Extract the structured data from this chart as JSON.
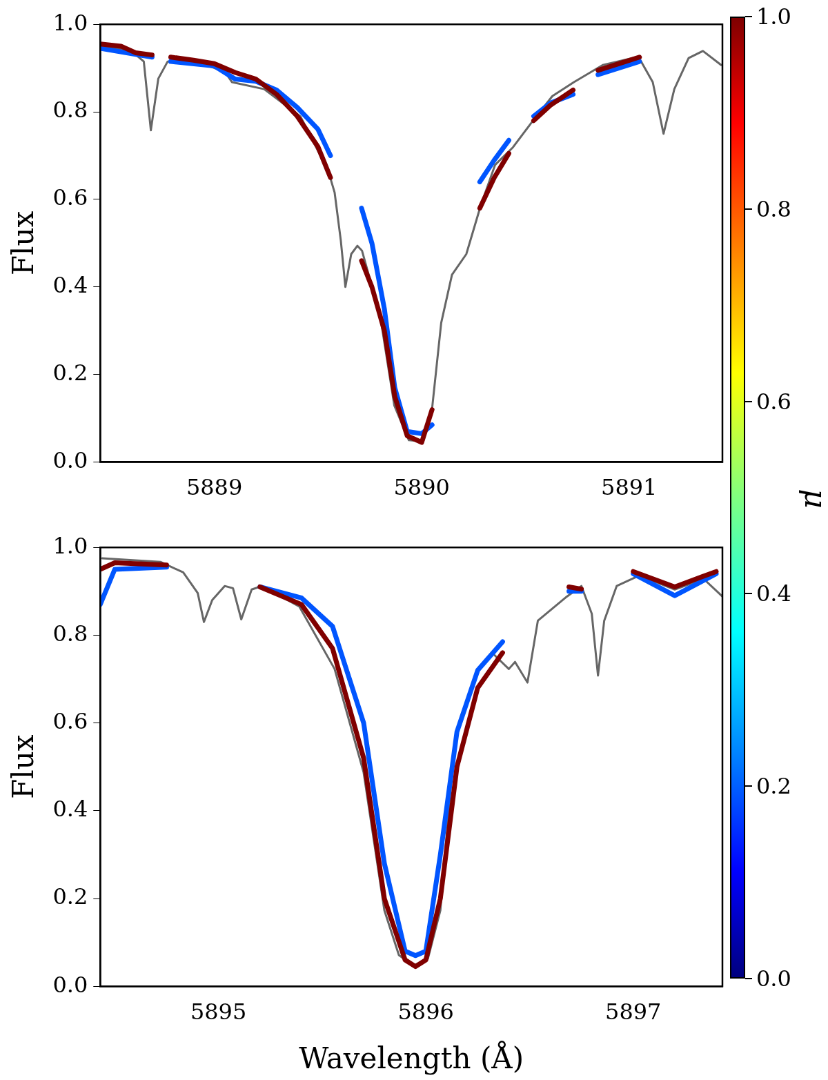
{
  "chart_data": [
    {
      "type": "line",
      "ylabel": "Flux",
      "xlim": [
        5888.45,
        5891.45
      ],
      "ylim": [
        0,
        1
      ],
      "xticks": [
        5889,
        5890,
        5891
      ],
      "yticks": [
        {
          "value": 0,
          "label": "0.0"
        },
        {
          "value": 0.2,
          "label": "0.2"
        },
        {
          "value": 0.4,
          "label": "0.4"
        },
        {
          "value": 0.6,
          "label": "0.6"
        },
        {
          "value": 0.8,
          "label": "0.8"
        },
        {
          "value": 1,
          "label": "1.0"
        }
      ],
      "grid": false,
      "legend": false,
      "clabel": "μ",
      "clim": [
        0,
        1
      ],
      "cticks": [
        {
          "value": 0,
          "label": "0.0"
        },
        {
          "value": 0.2,
          "label": "0.2"
        },
        {
          "value": 0.4,
          "label": "0.4"
        },
        {
          "value": 0.6,
          "label": "0.6"
        },
        {
          "value": 0.8,
          "label": "0.8"
        },
        {
          "value": 1,
          "label": "1.0"
        }
      ],
      "series": [
        {
          "color": "#666666",
          "x": [
            5888.452,
            5888.6,
            5888.66,
            5888.694,
            5888.73,
            5888.775,
            5888.896,
            5889.05,
            5889.085,
            5889.24,
            5889.416,
            5889.55,
            5889.58,
            5889.61,
            5889.632,
            5889.66,
            5889.69,
            5889.712,
            5889.8,
            5889.868,
            5889.938,
            5890.007,
            5890.048,
            5890.094,
            5890.146,
            5890.215,
            5890.284,
            5890.354,
            5890.44,
            5890.527,
            5890.63,
            5890.734,
            5890.873,
            5891.045,
            5891.114,
            5891.166,
            5891.218,
            5891.287,
            5891.356,
            5891.444
          ],
          "values": [
            0.95,
            0.939,
            0.915,
            0.758,
            0.876,
            0.915,
            0.918,
            0.892,
            0.868,
            0.852,
            0.789,
            0.664,
            0.616,
            0.506,
            0.4,
            0.475,
            0.494,
            0.483,
            0.333,
            0.129,
            0.05,
            0.047,
            0.113,
            0.318,
            0.428,
            0.475,
            0.585,
            0.679,
            0.719,
            0.774,
            0.836,
            0.868,
            0.907,
            0.926,
            0.868,
            0.75,
            0.852,
            0.923,
            0.939,
            0.907
          ]
        },
        {
          "color": "#0055ff",
          "x": [
            5888.45,
            5888.7,
            5888.74,
            5888.79,
            5889.0,
            5889.1,
            5889.2,
            5889.3,
            5889.4,
            5889.5,
            5889.56,
            5889.63,
            5889.71,
            5889.76,
            5889.82,
            5889.87,
            5889.93,
            5890.0,
            5890.05,
            5890.17,
            5890.28,
            5890.35,
            5890.42,
            5890.48,
            5890.54,
            5890.62,
            5890.73,
            5890.79,
            5890.85,
            5890.95,
            5891.05
          ],
          "values": [
            0.945,
            0.925,
            null,
            0.915,
            0.905,
            0.875,
            0.87,
            0.85,
            0.81,
            0.76,
            0.7,
            null,
            0.58,
            0.5,
            0.35,
            0.17,
            0.07,
            0.065,
            0.085,
            null,
            0.64,
            0.69,
            0.735,
            null,
            0.79,
            0.82,
            0.84,
            null,
            0.885,
            0.9,
            0.915
          ]
        },
        {
          "color": "#800000",
          "x": [
            5888.45,
            5888.55,
            5888.62,
            5888.7,
            5888.74,
            5888.79,
            5888.9,
            5889.0,
            5889.1,
            5889.2,
            5889.3,
            5889.4,
            5889.5,
            5889.56,
            5889.63,
            5889.71,
            5889.76,
            5889.82,
            5889.87,
            5889.93,
            5890.0,
            5890.05,
            5890.17,
            5890.28,
            5890.35,
            5890.42,
            5890.48,
            5890.54,
            5890.62,
            5890.73,
            5890.79,
            5890.85,
            5890.95,
            5891.05
          ],
          "values": [
            0.955,
            0.95,
            0.935,
            0.93,
            null,
            0.925,
            0.918,
            0.91,
            0.89,
            0.875,
            0.84,
            0.79,
            0.72,
            0.65,
            null,
            0.46,
            0.4,
            0.3,
            0.15,
            0.06,
            0.045,
            0.12,
            null,
            0.58,
            0.65,
            0.705,
            null,
            0.78,
            0.815,
            0.85,
            null,
            0.895,
            0.91,
            0.925
          ]
        }
      ]
    },
    {
      "type": "line",
      "xlabel": "Wavelength (Å)",
      "ylabel": "Flux",
      "xlim": [
        5894.43,
        5897.43
      ],
      "ylim": [
        0,
        1
      ],
      "xticks": [
        5895,
        5896,
        5897
      ],
      "yticks": [
        {
          "value": 0,
          "label": "0.0"
        },
        {
          "value": 0.2,
          "label": "0.2"
        },
        {
          "value": 0.4,
          "label": "0.4"
        },
        {
          "value": 0.6,
          "label": "0.6"
        },
        {
          "value": 0.8,
          "label": "0.8"
        },
        {
          "value": 1,
          "label": "1.0"
        }
      ],
      "grid": false,
      "legend": false,
      "series": [
        {
          "color": "#666666",
          "x": [
            5894.44,
            5894.72,
            5894.83,
            5894.9,
            5894.93,
            5894.97,
            5895.03,
            5895.07,
            5895.11,
            5895.16,
            5895.21,
            5895.39,
            5895.56,
            5895.7,
            5895.8,
            5895.87,
            5895.94,
            5896.01,
            5896.07,
            5896.12,
            5896.19,
            5896.33,
            5896.4,
            5896.43,
            5896.49,
            5896.54,
            5896.68,
            5896.75,
            5896.8,
            5896.83,
            5896.86,
            5896.92,
            5897.03,
            5897.2,
            5897.34,
            5897.43
          ],
          "values": [
            0.975,
            0.967,
            0.943,
            0.896,
            0.83,
            0.88,
            0.912,
            0.907,
            0.836,
            0.904,
            0.912,
            0.865,
            0.723,
            0.487,
            0.173,
            0.071,
            0.047,
            0.063,
            0.173,
            0.456,
            null,
            0.755,
            0.723,
            0.739,
            0.692,
            0.833,
            0.888,
            0.912,
            0.849,
            0.708,
            0.833,
            0.912,
            0.936,
            0.904,
            0.928,
            0.888
          ]
        },
        {
          "color": "#0055ff",
          "x": [
            5894.43,
            5894.5,
            5894.75,
            5894.9,
            5895.2,
            5895.4,
            5895.55,
            5895.7,
            5895.8,
            5895.9,
            5895.95,
            5896.0,
            5896.07,
            5896.15,
            5896.25,
            5896.37,
            5896.5,
            5896.69,
            5896.75,
            5896.85,
            5897.0,
            5897.2,
            5897.4
          ],
          "values": [
            0.87,
            0.95,
            0.955,
            null,
            0.91,
            0.885,
            0.82,
            0.6,
            0.28,
            0.08,
            0.07,
            0.08,
            0.3,
            0.58,
            0.72,
            0.785,
            null,
            0.9,
            0.9,
            null,
            0.94,
            0.89,
            0.94
          ]
        },
        {
          "color": "#800000",
          "x": [
            5894.43,
            5894.5,
            5894.75,
            5894.9,
            5895.2,
            5895.4,
            5895.55,
            5895.7,
            5895.8,
            5895.9,
            5895.95,
            5896.0,
            5896.07,
            5896.15,
            5896.25,
            5896.37,
            5896.5,
            5896.69,
            5896.75,
            5896.85,
            5897.0,
            5897.2,
            5897.4
          ],
          "values": [
            0.95,
            0.965,
            0.96,
            null,
            0.91,
            0.87,
            0.77,
            0.52,
            0.2,
            0.06,
            0.045,
            0.06,
            0.2,
            0.5,
            0.68,
            0.76,
            null,
            0.91,
            0.905,
            null,
            0.945,
            0.91,
            0.945
          ]
        }
      ]
    }
  ]
}
